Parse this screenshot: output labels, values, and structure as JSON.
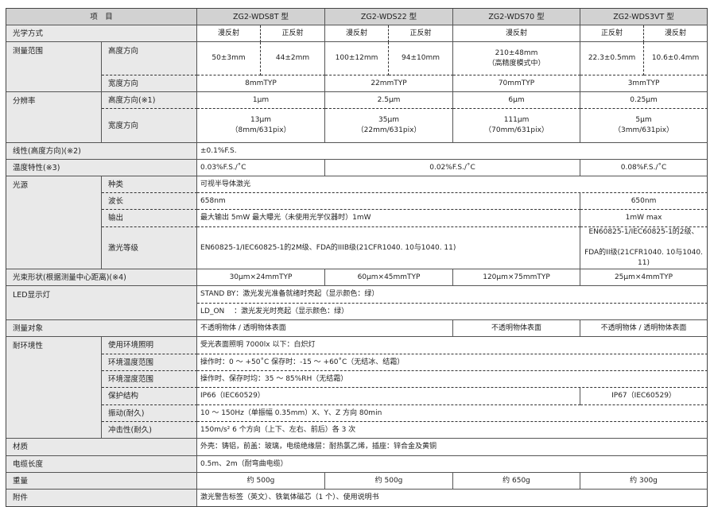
{
  "table": {
    "rows": [
      {
        "cells": [
          "项　目",
          "ZG2-WDS8T 型",
          "ZG2-WDS22 型",
          "ZG2-WDS70 型",
          "ZG2-WDS3VT 型"
        ]
      },
      {
        "cells": [
          "光学方式",
          "漫反射",
          "正反射",
          "漫反射",
          "正反射",
          "漫反射",
          "正反射",
          "漫反射"
        ]
      },
      {
        "cells": [
          "测量范围",
          "高度方向",
          "50±3mm",
          "44±2mm",
          "100±12mm",
          "94±10mm",
          "210±48mm\n（高精度模式中）",
          "22.3±0.5mm",
          "10.6±0.4mm"
        ]
      },
      {
        "cells": [
          "宽度方向",
          "8mmTYP",
          "22mmTYP",
          "70mmTYP",
          "3mmTYP"
        ]
      },
      {
        "cells": [
          "分辨率",
          "高度方向(※1)",
          "1μm",
          "2.5μm",
          "6μm",
          "0.25μm"
        ]
      },
      {
        "cells": [
          "宽度方向",
          "13μm\n（8mm/631pix）",
          "35μm\n（22mm/631pix）",
          "111μm\n（70mm/631pix）",
          "5μm\n（3mm/631pix）"
        ]
      },
      {
        "cells": [
          "线性(高度方向)(※2)",
          "±0.1%F.S."
        ]
      },
      {
        "cells": [
          "温度特性(※3)",
          "0.03%F.S./˚C",
          "0.02%F.S./˚C",
          "0.08%F.S./˚C"
        ]
      },
      {
        "cells": [
          "光源",
          "种类",
          "可视半导体激光"
        ]
      },
      {
        "cells": [
          "波长",
          "658nm",
          "650nm"
        ]
      },
      {
        "cells": [
          "输出",
          "最大输出 5mW  最大曝光（未使用光学仪器时）1mW",
          "1mW    max"
        ]
      },
      {
        "cells": [
          "激光等级",
          "EN60825-1/IEC60825-1的2M级、FDA的IIIB级(21CFR1040. 10与1040. 11)",
          "EN60825-1/IEC60825-1的2级、\n\nFDA的II级(21CFR1040. 10与1040. 11)"
        ]
      },
      {
        "cells": [
          "光束形状(根据测量中心距离)(※4)",
          "30μm×24mmTYP",
          "60μm×45mmTYP",
          "120μm×75mmTYP",
          "25μm×4mmTYP"
        ]
      },
      {
        "cells": [
          "LED显示灯",
          "STAND BY：激光发光准备就绪时亮起（显示颜色：绿）"
        ]
      },
      {
        "cells": [
          "LD_ON　 ：激光发光时亮起（显示颜色：绿）"
        ]
      },
      {
        "cells": [
          "测量对象",
          "不透明物体 / 透明物体表面",
          "不透明物体表面",
          "不透明物体 / 透明物体表面"
        ]
      },
      {
        "cells": [
          "耐环境性",
          "使用环境照明",
          "受光表面照明 7000lx 以下：白炽灯"
        ]
      },
      {
        "cells": [
          "环境温度范围",
          "操作时：0 ～ +50˚C  保存时：-15 ～ +60˚C（无结冰、结霜）"
        ]
      },
      {
        "cells": [
          "环境湿度范围",
          "操作时、保存时均：35 ～ 85%RH（无结霜）"
        ]
      },
      {
        "cells": [
          "保护结构",
          "IP66（IEC60529）",
          "IP67（IEC60529）"
        ]
      },
      {
        "cells": [
          "振动(耐久)",
          "10 ～ 150Hz（单振幅 0.35mm）X、Y、Z 方向 80min"
        ]
      },
      {
        "cells": [
          "冲击性(耐久)",
          "150m/s² 6 个方向（上下、左右、前后）各 3 次"
        ]
      },
      {
        "cells": [
          "材质",
          "外壳：铸铝，前盖：玻璃，电缆绝缘层：耐热氯乙烯，插座：锌合金及黄铜"
        ]
      },
      {
        "cells": [
          "电缆长度",
          "0.5m、2m（耐弯曲电缆）"
        ]
      },
      {
        "cells": [
          "重量",
          "约 500g",
          "约 500g",
          "约 650g",
          "约 300g"
        ]
      },
      {
        "cells": [
          "附件",
          "激光警告标签（英文）、铁氧体磁芯（1 个）、使用说明书"
        ]
      }
    ]
  },
  "colors": {
    "header_bg": "#d2d2d2",
    "label_bg": "#e9e9e9",
    "border": "#555555"
  }
}
